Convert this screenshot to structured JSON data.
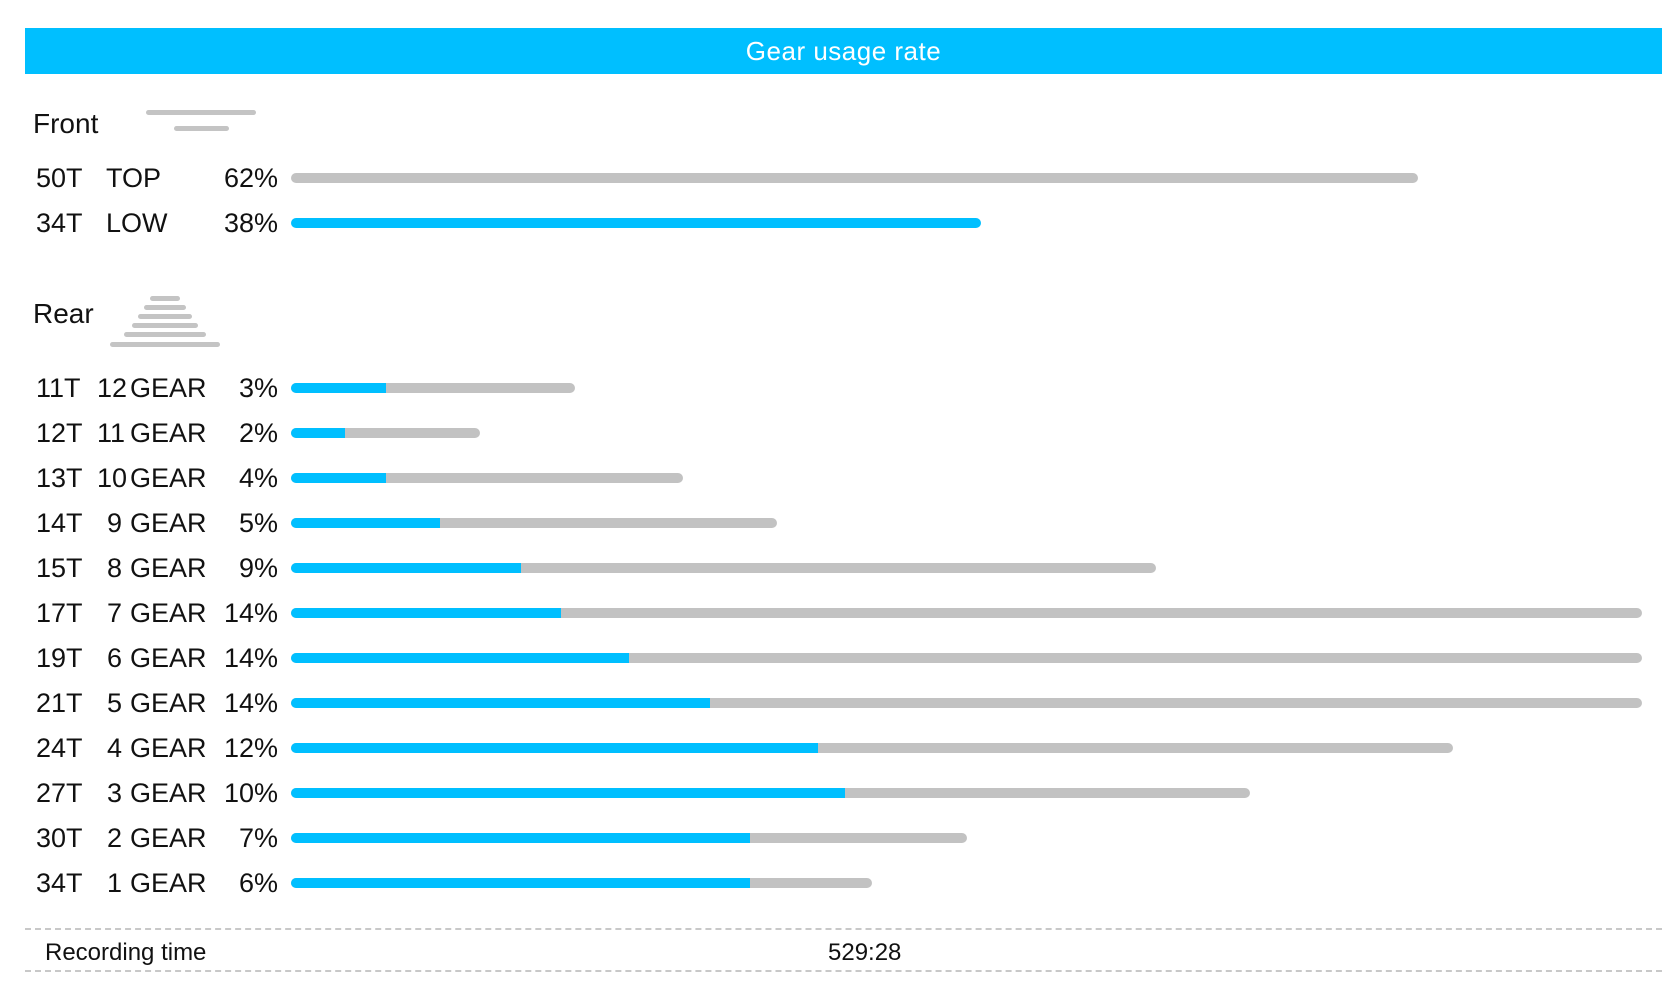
{
  "title": "Gear usage rate",
  "colors": {
    "accent": "#00bfff",
    "track": "#c2c2c2",
    "text": "#111111"
  },
  "front": {
    "label": "Front",
    "icon": "front-chainring-icon",
    "rows": [
      {
        "teeth": "50T",
        "gear": "TOP",
        "pct": "62%",
        "fill": 0.62,
        "track": 0.62,
        "fill_color": "gray"
      },
      {
        "teeth": "34T",
        "gear": "LOW",
        "pct": "38%",
        "fill": 0.38,
        "track": 0.38,
        "fill_color": "accent"
      }
    ]
  },
  "rear": {
    "label": "Rear",
    "icon": "rear-cassette-icon",
    "gear_word": "GEAR",
    "rows": [
      {
        "teeth": "11T",
        "num": "12",
        "pct": "3%",
        "fill": 0.07,
        "track": 0.21
      },
      {
        "teeth": "12T",
        "num": "11",
        "pct": "2%",
        "fill": 0.04,
        "track": 0.14
      },
      {
        "teeth": "13T",
        "num": "10",
        "pct": "4%",
        "fill": 0.07,
        "track": 0.29
      },
      {
        "teeth": "14T",
        "num": "9",
        "pct": "5%",
        "fill": 0.11,
        "track": 0.36
      },
      {
        "teeth": "15T",
        "num": "8",
        "pct": "9%",
        "fill": 0.17,
        "track": 0.64
      },
      {
        "teeth": "17T",
        "num": "7",
        "pct": "14%",
        "fill": 0.2,
        "track": 1.0
      },
      {
        "teeth": "19T",
        "num": "6",
        "pct": "14%",
        "fill": 0.25,
        "track": 1.0
      },
      {
        "teeth": "21T",
        "num": "5",
        "pct": "14%",
        "fill": 0.31,
        "track": 1.0
      },
      {
        "teeth": "24T",
        "num": "4",
        "pct": "12%",
        "fill": 0.39,
        "track": 0.86
      },
      {
        "teeth": "27T",
        "num": "3",
        "pct": "10%",
        "fill": 0.41,
        "track": 0.71
      },
      {
        "teeth": "30T",
        "num": "2",
        "pct": "7%",
        "fill": 0.34,
        "track": 0.5
      },
      {
        "teeth": "34T",
        "num": "1",
        "pct": "6%",
        "fill": 0.34,
        "track": 0.43
      }
    ]
  },
  "footer": {
    "label": "Recording time",
    "value": "529:28"
  },
  "chart_data": {
    "type": "bar",
    "title": "Gear usage rate",
    "orientation": "horizontal",
    "groups": [
      {
        "name": "Front",
        "categories": [
          "50T TOP",
          "34T LOW"
        ],
        "values": [
          62,
          38
        ]
      },
      {
        "name": "Rear",
        "categories": [
          "11T 12GEAR",
          "12T 11GEAR",
          "13T 10GEAR",
          "14T 9GEAR",
          "15T 8GEAR",
          "17T 7GEAR",
          "19T 6GEAR",
          "21T 5GEAR",
          "24T 4GEAR",
          "27T 3GEAR",
          "30T 2GEAR",
          "34T 1GEAR"
        ],
        "values": [
          3,
          2,
          4,
          5,
          9,
          14,
          14,
          14,
          12,
          10,
          7,
          6
        ]
      }
    ],
    "unit": "%"
  }
}
